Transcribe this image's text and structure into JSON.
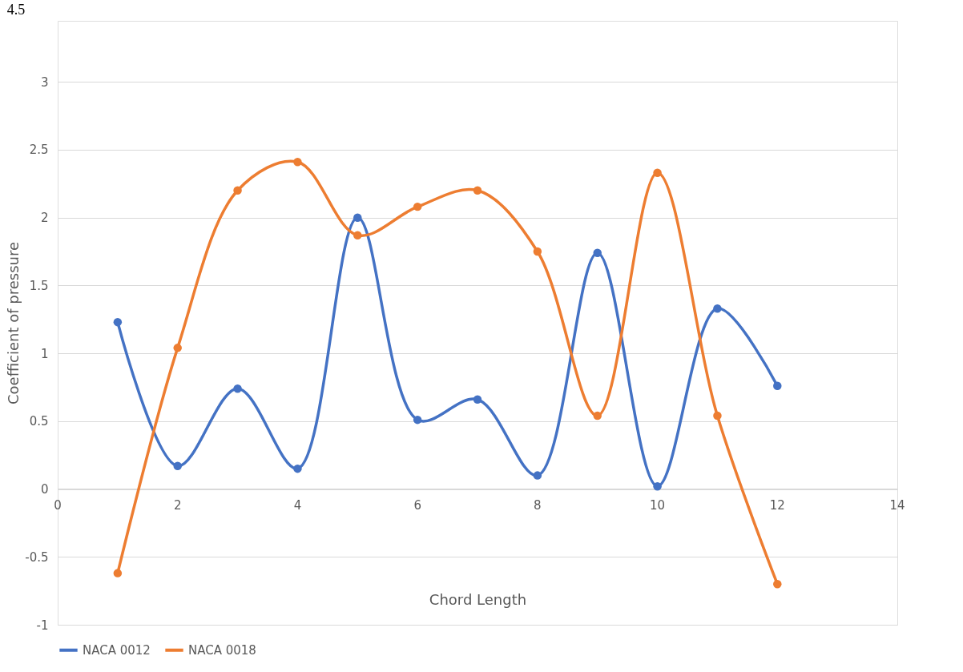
{
  "chart_data": {
    "type": "line",
    "title": "4.5",
    "xlabel": "Chord Length",
    "ylabel": "Coefficient of pressure",
    "x": [
      1,
      2,
      3,
      4,
      5,
      6,
      7,
      8,
      9,
      10,
      11,
      12
    ],
    "series": [
      {
        "name": "NACA 0012",
        "color": "#4472c4",
        "values": [
          1.23,
          0.17,
          0.74,
          0.15,
          2.0,
          0.51,
          0.66,
          0.1,
          1.74,
          0.02,
          1.33,
          0.76
        ]
      },
      {
        "name": "NACA 0018",
        "color": "#ed7d31",
        "values": [
          -0.62,
          1.04,
          2.2,
          2.41,
          1.87,
          2.08,
          2.2,
          1.75,
          0.54,
          2.33,
          0.54,
          -0.7
        ]
      }
    ],
    "xlim": [
      0,
      14
    ],
    "xticks": [
      0,
      2,
      4,
      6,
      8,
      10,
      12,
      14
    ],
    "ylim": [
      -1,
      3.45
    ],
    "yticks": [
      -1,
      -0.5,
      0,
      0.5,
      1,
      1.5,
      2,
      2.5,
      3
    ],
    "grid": "y",
    "legend": "bottom",
    "marker": "circle",
    "line_style": "solid"
  }
}
